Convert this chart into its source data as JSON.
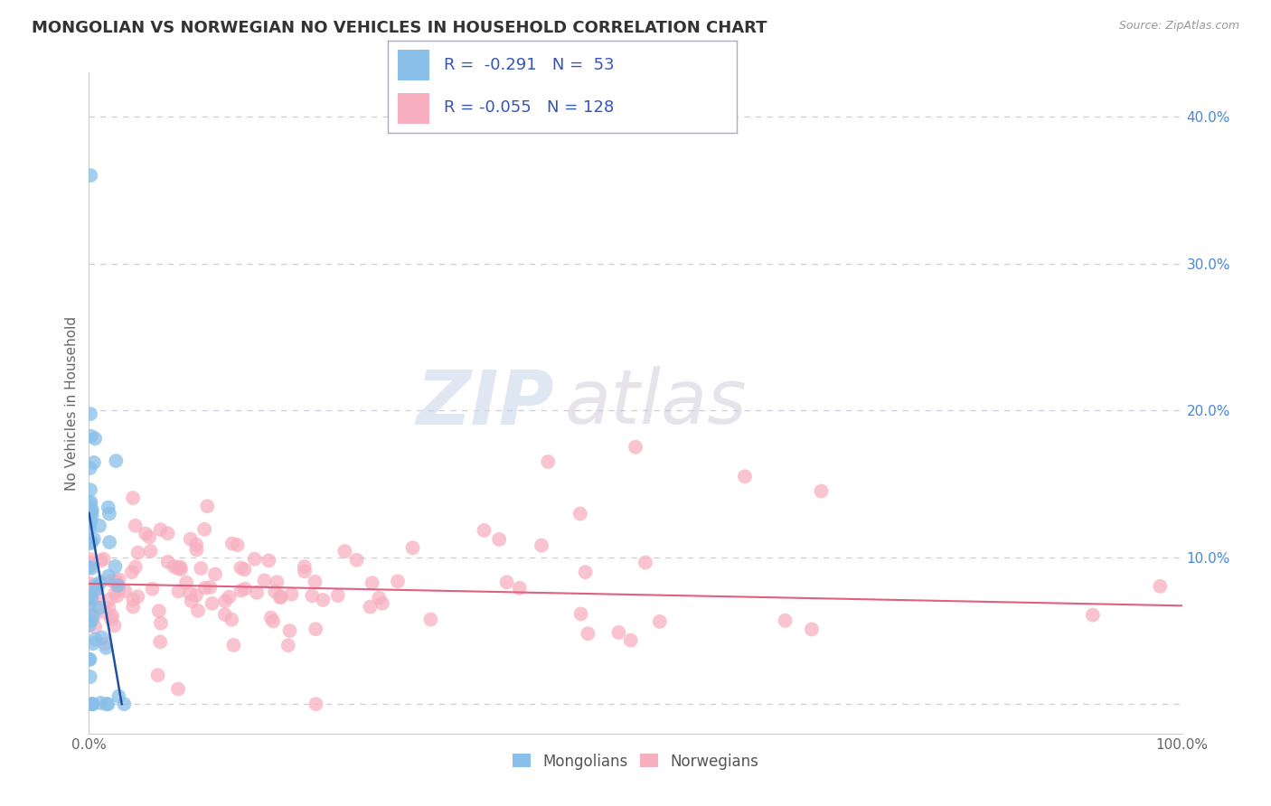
{
  "title": "MONGOLIAN VS NORWEGIAN NO VEHICLES IN HOUSEHOLD CORRELATION CHART",
  "source": "Source: ZipAtlas.com",
  "ylabel": "No Vehicles in Household",
  "xlim": [
    0.0,
    100.0
  ],
  "ylim": [
    -0.02,
    0.43
  ],
  "yticks": [
    0.0,
    0.1,
    0.2,
    0.3,
    0.4
  ],
  "ytick_labels": [
    "",
    "10.0%",
    "20.0%",
    "30.0%",
    "40.0%"
  ],
  "xtick_labels_left": "0.0%",
  "xtick_labels_right": "100.0%",
  "mongolian_color": "#89bfe8",
  "norwegian_color": "#f7afc0",
  "mongolian_line_color": "#2050a0",
  "norwegian_line_color": "#e06080",
  "mongolian_R": -0.291,
  "mongolian_N": 53,
  "norwegian_R": -0.055,
  "norwegian_N": 128,
  "bottom_legend_mongolians": "Mongolians",
  "bottom_legend_norwegians": "Norwegians",
  "watermark_zip": "ZIP",
  "watermark_atlas": "atlas",
  "background_color": "#ffffff",
  "grid_color": "#ccccdd",
  "legend_box_color": "#aaaacc",
  "legend_text_color": "#3355bb",
  "source_color": "#999999",
  "title_color": "#333333",
  "ylabel_color": "#666666",
  "ytick_color": "#4488dd",
  "xtick_color": "#666666"
}
